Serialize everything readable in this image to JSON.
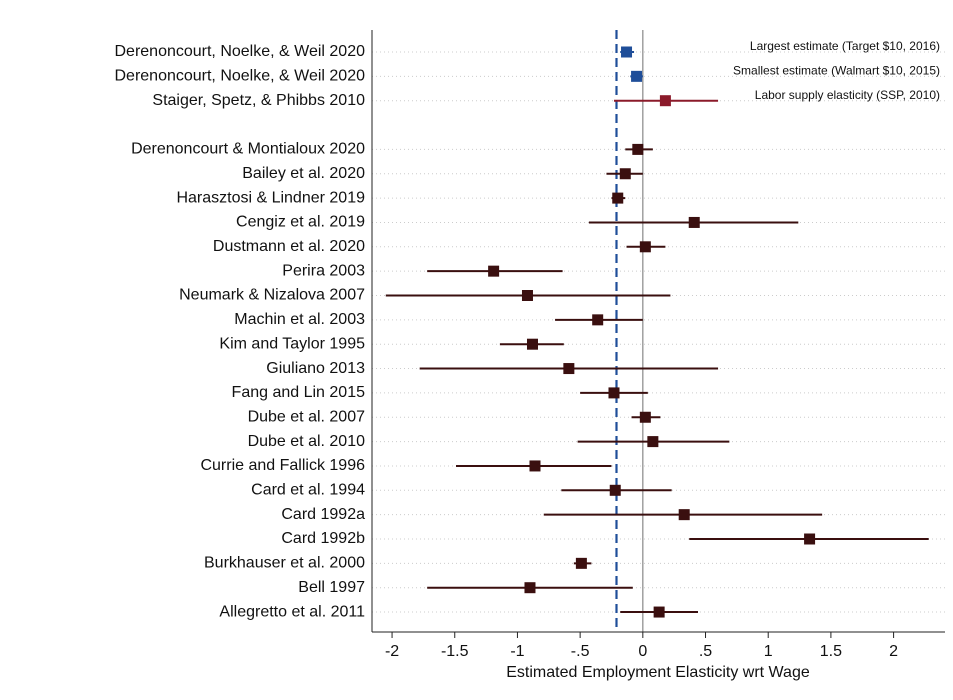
{
  "chart_data": {
    "type": "forest",
    "xlabel": "Estimated Employment Elasticity wrt Wage",
    "xlim": [
      -2.16,
      2.41
    ],
    "xticks": [
      -2,
      -1.5,
      -1,
      {
        "value": -0.5,
        "label": "-.5"
      },
      0,
      {
        "value": 0.5,
        "label": ".5"
      },
      1,
      1.5,
      2
    ],
    "reference_line": -0.21,
    "reference_color": "#1f4e99",
    "zero_line": 0,
    "categories": [
      "Derenoncourt, Noelke, & Weil 2020",
      "Derenoncourt, Noelke, & Weil 2020",
      "Staiger, Spetz, & Phibbs 2010",
      null,
      "Derenoncourt & Montialoux 2020",
      "Bailey et al. 2020",
      "Harasztosi & Lindner 2019",
      "Cengiz et al. 2019",
      "Dustmann et al. 2020",
      "Perira 2003",
      "Neumark & Nizalova 2007",
      "Machin et al. 2003",
      "Kim and Taylor 1995",
      "Giuliano 2013",
      "Fang and Lin 2015",
      "Dube et al. 2007",
      "Dube et al. 2010",
      "Currie and Fallick 1996",
      "Card et al. 1994",
      "Card 1992a",
      "Card 1992b",
      "Burkhauser et al. 2000",
      "Bell 1997",
      "Allegretto et al. 2011"
    ],
    "values": [
      -0.13,
      -0.05,
      0.18,
      null,
      -0.04,
      -0.14,
      -0.2,
      0.41,
      0.02,
      -1.19,
      -0.92,
      -0.36,
      -0.88,
      -0.59,
      -0.23,
      0.02,
      0.08,
      -0.86,
      -0.22,
      0.33,
      1.33,
      -0.49,
      -0.9,
      0.13
    ],
    "lower": [
      -0.18,
      -0.1,
      -0.23,
      null,
      -0.14,
      -0.29,
      -0.25,
      -0.43,
      -0.13,
      -1.72,
      -2.05,
      -0.7,
      -1.14,
      -1.78,
      -0.5,
      -0.09,
      -0.52,
      -1.49,
      -0.65,
      -0.79,
      0.37,
      -0.55,
      -1.72,
      -0.18
    ],
    "upper": [
      -0.07,
      0.0,
      0.6,
      null,
      0.08,
      0.0,
      -0.14,
      1.24,
      0.18,
      -0.64,
      0.22,
      0.0,
      -0.63,
      0.6,
      0.04,
      0.14,
      0.69,
      -0.25,
      0.23,
      1.43,
      2.28,
      -0.41,
      -0.08,
      0.44
    ],
    "colors": [
      "#1f4e99",
      "#1f4e99",
      "#8b1a2a",
      null,
      "#3a0f0f",
      "#3a0f0f",
      "#3a0f0f",
      "#3a0f0f",
      "#3a0f0f",
      "#3a0f0f",
      "#3a0f0f",
      "#3a0f0f",
      "#3a0f0f",
      "#3a0f0f",
      "#3a0f0f",
      "#3a0f0f",
      "#3a0f0f",
      "#3a0f0f",
      "#3a0f0f",
      "#3a0f0f",
      "#3a0f0f",
      "#3a0f0f",
      "#3a0f0f",
      "#3a0f0f"
    ],
    "annotations": [
      "Largest estimate (Target $10, 2016)",
      "Smallest estimate (Walmart $10, 2015)",
      "Labor supply elasticity (SSP, 2010)",
      null,
      null,
      null,
      null,
      null,
      null,
      null,
      null,
      null,
      null,
      null,
      null,
      null,
      null,
      null,
      null,
      null,
      null,
      null,
      null,
      null
    ]
  }
}
